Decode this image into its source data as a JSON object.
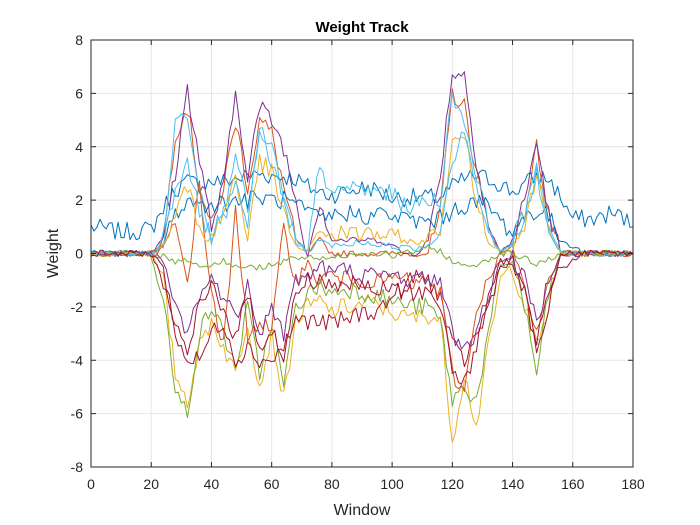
{
  "chart_data": {
    "type": "line",
    "title": "Weight Track",
    "xlabel": "Window",
    "ylabel": "Weight",
    "xlim": [
      0,
      180
    ],
    "ylim": [
      -8,
      8
    ],
    "xticks": [
      0,
      20,
      40,
      60,
      80,
      100,
      120,
      140,
      160,
      180
    ],
    "yticks": [
      -8,
      -6,
      -4,
      -2,
      0,
      2,
      4,
      6,
      8
    ],
    "grid": true,
    "legend": "none",
    "colors": [
      "#0072BD",
      "#D95319",
      "#EDB120",
      "#7E2F8E",
      "#77AC30",
      "#4DBEEE",
      "#A2142F"
    ],
    "series": [
      {
        "x": [
          0,
          10,
          20,
          24,
          28,
          32,
          36,
          40,
          44,
          48,
          52,
          56,
          60,
          64,
          68,
          72,
          76,
          80,
          84,
          88,
          92,
          96,
          100,
          104,
          108,
          112,
          116,
          120,
          124,
          128,
          132,
          136,
          140,
          144,
          148,
          152,
          156,
          160,
          164,
          168,
          172,
          176,
          180
        ],
        "y": [
          1.0,
          0.8,
          0.9,
          1.7,
          2.4,
          2.7,
          2.6,
          2.7,
          2.7,
          2.8,
          2.9,
          3.0,
          2.9,
          2.9,
          2.8,
          2.5,
          2.3,
          2.2,
          2.3,
          2.4,
          2.5,
          2.3,
          2.1,
          2.1,
          2.1,
          2.1,
          2.1,
          2.5,
          2.8,
          2.9,
          2.8,
          2.6,
          2.3,
          2.6,
          2.9,
          2.8,
          2.1,
          1.3,
          1.3,
          1.3,
          1.5,
          1.4,
          1.0
        ]
      },
      {
        "x": [
          0,
          10,
          20,
          24,
          28,
          32,
          36,
          40,
          44,
          48,
          52,
          56,
          60,
          64,
          68,
          72,
          76,
          80,
          84,
          88,
          92,
          96,
          100,
          104,
          108,
          112,
          116,
          120,
          124,
          128,
          132,
          136,
          140,
          144,
          148,
          152,
          156,
          160,
          164,
          168,
          172,
          176,
          180
        ],
        "y": [
          0,
          0,
          0,
          0.5,
          4.5,
          5.5,
          2.5,
          1.0,
          2.5,
          5.0,
          2.5,
          5.0,
          4.5,
          2.5,
          0.5,
          0,
          0.5,
          0,
          0,
          0,
          0,
          0,
          0,
          0,
          0,
          0,
          1.5,
          6.0,
          5.5,
          3.0,
          1.0,
          0,
          0.5,
          1.5,
          4.0,
          1.5,
          0,
          0,
          0,
          0,
          0,
          0,
          0
        ]
      },
      {
        "x": [
          0,
          10,
          20,
          24,
          28,
          32,
          36,
          40,
          44,
          48,
          52,
          56,
          60,
          64,
          68,
          72,
          76,
          80,
          84,
          88,
          92,
          96,
          100,
          104,
          108,
          112,
          116,
          120,
          124,
          128,
          132,
          136,
          140,
          144,
          148,
          152,
          156,
          160,
          164,
          168,
          172,
          176,
          180
        ],
        "y": [
          0,
          0,
          0,
          -1.0,
          -4.5,
          -5.5,
          -3.5,
          -2.5,
          -3.5,
          -4.5,
          -2.5,
          -5.0,
          -3.0,
          -5.5,
          -2.5,
          -2.0,
          -1.8,
          -2.2,
          -2.0,
          -2.0,
          -1.8,
          -2.0,
          -2.2,
          -2.4,
          -2.4,
          -2.3,
          -2.5,
          -7.0,
          -4.5,
          -6.5,
          -3.5,
          -1.0,
          -0.5,
          -2.0,
          -3.5,
          -2.0,
          0,
          0,
          0,
          0,
          0,
          0,
          0
        ]
      },
      {
        "x": [
          0,
          10,
          20,
          24,
          28,
          32,
          36,
          40,
          44,
          48,
          52,
          56,
          60,
          64,
          68,
          72,
          76,
          80,
          84,
          88,
          92,
          96,
          100,
          104,
          108,
          112,
          116,
          120,
          124,
          128,
          132,
          136,
          140,
          144,
          148,
          152,
          156,
          160,
          164,
          168,
          172,
          176,
          180
        ],
        "y": [
          0,
          0,
          0,
          0.5,
          3.0,
          6.2,
          3.5,
          1.0,
          2.5,
          6.0,
          3.0,
          5.5,
          5.0,
          4.0,
          2.0,
          0,
          2.0,
          0.5,
          0.5,
          0.5,
          0.5,
          0.5,
          0.3,
          0,
          0,
          0.5,
          3.0,
          6.8,
          6.7,
          3.5,
          1.0,
          0,
          0.5,
          2.0,
          4.2,
          1.5,
          0,
          0,
          0,
          0,
          0,
          0,
          0
        ]
      },
      {
        "x": [
          0,
          10,
          20,
          24,
          28,
          32,
          36,
          40,
          44,
          48,
          52,
          56,
          60,
          64,
          68,
          72,
          76,
          80,
          84,
          88,
          92,
          96,
          100,
          104,
          108,
          112,
          116,
          120,
          124,
          128,
          132,
          136,
          140,
          144,
          148,
          152,
          156,
          160,
          164,
          168,
          172,
          176,
          180
        ],
        "y": [
          0,
          0,
          0,
          -1.5,
          -5.3,
          -5.9,
          -3.0,
          -2.0,
          -3.0,
          -4.3,
          -2.0,
          -4.5,
          -2.5,
          -5.0,
          -2.0,
          -1.5,
          -1.2,
          -1.5,
          -1.3,
          -1.4,
          -1.5,
          -1.6,
          -1.8,
          -1.9,
          -2.0,
          -2.0,
          -2.5,
          -5.5,
          -5.0,
          -5.5,
          -3.0,
          -0.5,
          -0.3,
          -2.0,
          -4.5,
          -1.5,
          0,
          0,
          0,
          0,
          0,
          0,
          0
        ]
      },
      {
        "x": [
          0,
          10,
          20,
          24,
          28,
          32,
          36,
          40,
          44,
          48,
          52,
          56,
          60,
          64,
          68,
          72,
          76,
          80,
          84,
          88,
          92,
          96,
          100,
          104,
          108,
          112,
          116,
          120,
          124,
          128,
          132,
          136,
          140,
          144,
          148,
          152,
          156,
          160,
          164,
          168,
          172,
          176,
          180
        ],
        "y": [
          0,
          0,
          0,
          0.5,
          4.9,
          5.3,
          2.5,
          0.8,
          1.5,
          4.0,
          1.5,
          4.5,
          4.0,
          2.0,
          0.5,
          0,
          3.5,
          2.0,
          2.5,
          2.5,
          2.3,
          2.4,
          2.2,
          1.8,
          1.8,
          2.0,
          2.0,
          6.0,
          5.0,
          3.0,
          1.0,
          0,
          0.5,
          1.5,
          3.5,
          1.0,
          0,
          0,
          0,
          0,
          0,
          0,
          0
        ]
      },
      {
        "x": [
          0,
          10,
          20,
          24,
          28,
          32,
          36,
          40,
          44,
          48,
          52,
          56,
          60,
          64,
          68,
          72,
          76,
          80,
          84,
          88,
          92,
          96,
          100,
          104,
          108,
          112,
          116,
          120,
          124,
          128,
          132,
          136,
          140,
          144,
          148,
          152,
          156,
          160,
          164,
          168,
          172,
          176,
          180
        ],
        "y": [
          0,
          0,
          0,
          -1.0,
          -3.0,
          -4.0,
          -4.0,
          -3.0,
          -2.5,
          -4.0,
          -3.5,
          -4.0,
          -4.0,
          -3.5,
          -2.5,
          -2.5,
          -2.6,
          -2.6,
          -2.5,
          -2.3,
          -2.2,
          -2.1,
          -1.6,
          -1.3,
          -0.8,
          -1.0,
          -1.6,
          -3.5,
          -4.0,
          -3.0,
          -2.0,
          -0.5,
          -0.3,
          -1.5,
          -3.8,
          -2.0,
          -0.5,
          -0.3,
          0,
          0,
          0,
          0,
          0
        ]
      },
      {
        "x": [
          0,
          10,
          20,
          24,
          28,
          32,
          36,
          40,
          44,
          48,
          52,
          56,
          60,
          64,
          68,
          72,
          76,
          80,
          84,
          88,
          92,
          96,
          100,
          104,
          108,
          112,
          116,
          120,
          124,
          128,
          132,
          136,
          140,
          144,
          148,
          152,
          156,
          160,
          164,
          168,
          172,
          176,
          180
        ],
        "y": [
          0,
          0,
          0,
          0.3,
          1.5,
          2.0,
          1.8,
          1.9,
          1.9,
          2.0,
          2.0,
          2.1,
          2.0,
          2.0,
          1.8,
          1.5,
          1.3,
          1.4,
          1.5,
          1.5,
          1.4,
          1.5,
          1.4,
          1.3,
          1.2,
          1.2,
          1.3,
          1.6,
          1.8,
          1.9,
          1.8,
          1.2,
          0.8,
          1.4,
          1.6,
          1.4,
          0.5,
          0.3,
          0,
          0,
          0,
          0,
          0
        ]
      },
      {
        "x": [
          0,
          10,
          20,
          24,
          28,
          32,
          36,
          40,
          44,
          48,
          52,
          56,
          60,
          64,
          68,
          72,
          76,
          80,
          84,
          88,
          92,
          96,
          100,
          104,
          108,
          112,
          116,
          120,
          124,
          128,
          132,
          136,
          140,
          144,
          148,
          152,
          156,
          160,
          164,
          168,
          172,
          176,
          180
        ],
        "y": [
          0,
          0,
          0,
          0.2,
          1.0,
          -1.0,
          2.5,
          -1.5,
          -3.5,
          1.5,
          -3.0,
          -2.5,
          -3.0,
          1.0,
          -1.0,
          -0.5,
          -1.0,
          -0.8,
          -1.0,
          -0.9,
          -1.0,
          -1.1,
          -0.9,
          -1.0,
          -1.2,
          -1.0,
          -1.5,
          -4.5,
          -5.2,
          -2.0,
          -1.0,
          0,
          0.2,
          -1.5,
          -3.0,
          -1.0,
          0,
          0,
          0,
          0,
          0,
          0,
          0
        ]
      },
      {
        "x": [
          0,
          10,
          20,
          24,
          28,
          32,
          36,
          40,
          44,
          48,
          52,
          56,
          60,
          64,
          68,
          72,
          76,
          80,
          84,
          88,
          92,
          96,
          100,
          104,
          108,
          112,
          116,
          120,
          124,
          128,
          132,
          136,
          140,
          144,
          148,
          152,
          156,
          160,
          164,
          168,
          172,
          176,
          180
        ],
        "y": [
          0,
          0,
          0,
          0.2,
          1.5,
          2.5,
          1.0,
          0.5,
          1.5,
          3.0,
          0.5,
          3.5,
          3.0,
          1.5,
          0.3,
          0,
          1.0,
          0.6,
          0.8,
          0.7,
          0.8,
          0.7,
          0.6,
          0.5,
          0.4,
          0.5,
          1.0,
          4.0,
          4.5,
          2.0,
          0.5,
          0,
          0.3,
          1.0,
          3.0,
          1.0,
          0,
          0,
          0,
          0,
          0,
          0,
          0
        ]
      },
      {
        "x": [
          0,
          10,
          20,
          24,
          28,
          32,
          36,
          40,
          44,
          48,
          52,
          56,
          60,
          64,
          68,
          72,
          76,
          80,
          84,
          88,
          92,
          96,
          100,
          104,
          108,
          112,
          116,
          120,
          124,
          128,
          132,
          136,
          140,
          144,
          148,
          152,
          156,
          160,
          164,
          168,
          172,
          176,
          180
        ],
        "y": [
          0,
          0,
          0,
          -0.3,
          -2.0,
          -3.0,
          -1.5,
          -1.0,
          -1.5,
          -2.5,
          -1.0,
          -3.0,
          -2.0,
          -3.0,
          -1.0,
          -0.8,
          -0.5,
          -0.7,
          -0.6,
          -0.7,
          -0.8,
          -0.9,
          -0.8,
          -0.9,
          -1.0,
          -0.9,
          -1.0,
          -3.0,
          -3.5,
          -3.0,
          -1.5,
          -0.2,
          -0.2,
          -1.0,
          -2.5,
          -1.0,
          0,
          0,
          0,
          0,
          0,
          0,
          0
        ]
      },
      {
        "x": [
          0,
          10,
          20,
          24,
          28,
          32,
          36,
          40,
          44,
          48,
          52,
          56,
          60,
          64,
          68,
          72,
          76,
          80,
          84,
          88,
          92,
          96,
          100,
          104,
          108,
          112,
          116,
          120,
          124,
          128,
          132,
          136,
          140,
          144,
          148,
          152,
          156,
          160,
          164,
          168,
          172,
          176,
          180
        ],
        "y": [
          0,
          0,
          0,
          -0.1,
          -0.3,
          -0.2,
          -0.5,
          -0.4,
          -0.3,
          -0.5,
          -0.4,
          -0.6,
          -0.5,
          -0.3,
          -0.2,
          -0.1,
          -0.2,
          -0.1,
          -0.1,
          0,
          0,
          0,
          -0.1,
          0,
          0.1,
          0.2,
          0.1,
          -0.3,
          -0.5,
          -0.4,
          -0.2,
          0,
          0,
          -0.2,
          -0.4,
          -0.2,
          0,
          0,
          0,
          0,
          0,
          0,
          0
        ]
      },
      {
        "x": [
          0,
          10,
          20,
          24,
          28,
          32,
          36,
          40,
          44,
          48,
          52,
          56,
          60,
          64,
          68,
          72,
          76,
          80,
          84,
          88,
          92,
          96,
          100,
          104,
          108,
          112,
          116,
          120,
          124,
          128,
          132,
          136,
          140,
          144,
          148,
          152,
          156,
          160,
          164,
          168,
          172,
          176,
          180
        ],
        "y": [
          0,
          0,
          0,
          0.4,
          2.5,
          3.5,
          1.5,
          0.6,
          1.2,
          2.5,
          1.0,
          4.5,
          3.5,
          2.0,
          0.5,
          0,
          0.5,
          0.3,
          0.3,
          0.4,
          0.4,
          0.3,
          0.3,
          0.2,
          0.2,
          0.3,
          1.0,
          3.5,
          4.8,
          2.5,
          0.8,
          0,
          0.4,
          1.2,
          3.0,
          0.8,
          0,
          0,
          0,
          0,
          0,
          0,
          0
        ]
      },
      {
        "x": [
          0,
          10,
          20,
          24,
          28,
          32,
          36,
          40,
          44,
          48,
          52,
          56,
          60,
          64,
          68,
          72,
          76,
          80,
          84,
          88,
          92,
          96,
          100,
          104,
          108,
          112,
          116,
          120,
          124,
          128,
          132,
          136,
          140,
          144,
          148,
          152,
          156,
          160,
          164,
          168,
          172,
          176,
          180
        ],
        "y": [
          0,
          0,
          0,
          -0.5,
          -2.8,
          -3.8,
          -2.0,
          -1.2,
          -2.0,
          -3.2,
          -1.5,
          -3.5,
          -2.8,
          -4.0,
          -1.5,
          -1.0,
          -1.0,
          -1.2,
          -1.1,
          -1.2,
          -1.3,
          -1.4,
          -1.3,
          -1.4,
          -1.5,
          -1.4,
          -1.8,
          -4.5,
          -4.8,
          -3.5,
          -1.8,
          -0.3,
          -0.3,
          -1.5,
          -3.2,
          -1.2,
          0,
          0,
          0,
          0,
          0,
          0,
          0
        ]
      }
    ]
  }
}
